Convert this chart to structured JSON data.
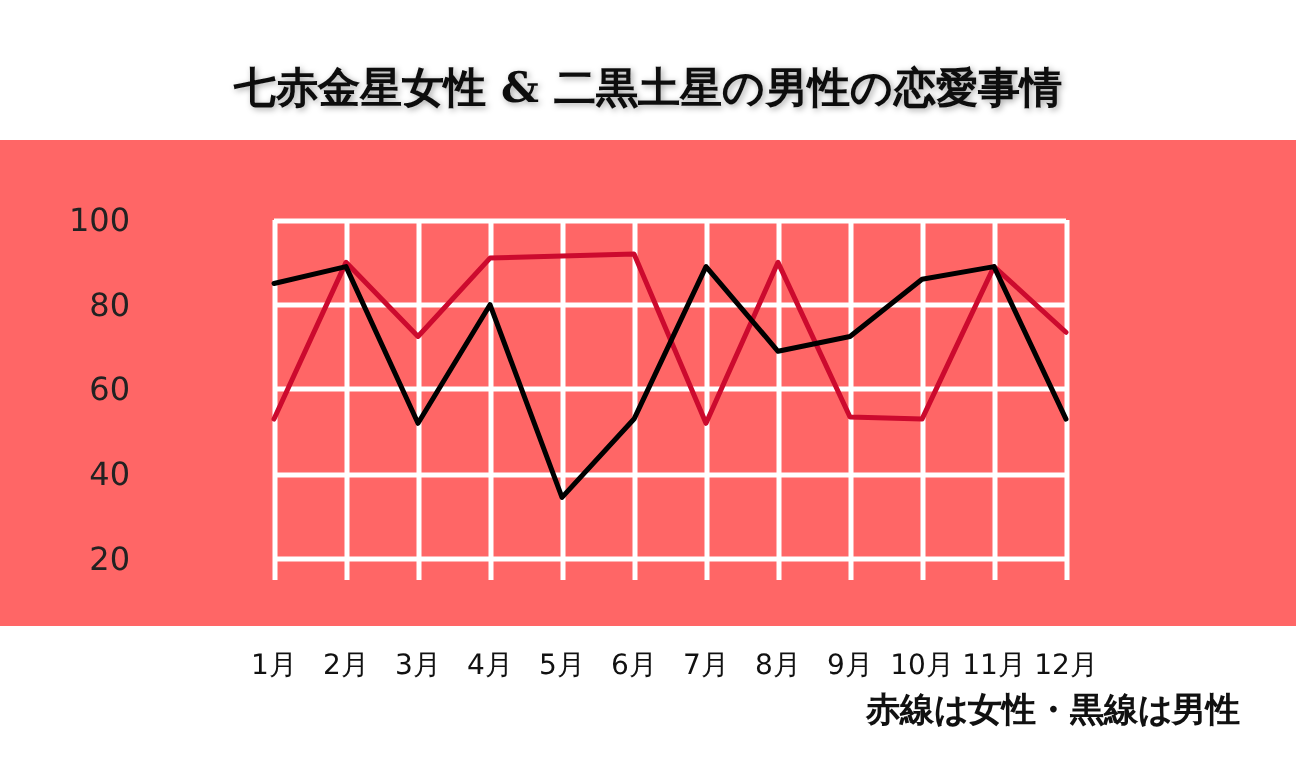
{
  "chart_data": {
    "type": "line",
    "title": "七赤金星女性 & 二黒土星の男性の恋愛事情",
    "categories": [
      "1月",
      "2月",
      "3月",
      "4月",
      "5月",
      "6月",
      "7月",
      "8月",
      "9月",
      "10月",
      "11月",
      "12月"
    ],
    "series": [
      {
        "color": "#cc0a2e",
        "values": [
          53,
          90,
          72.5,
          91,
          91.5,
          92,
          52,
          90,
          53.5,
          53,
          89,
          73.5
        ]
      },
      {
        "color": "#000000",
        "values": [
          85,
          89,
          52,
          80,
          34.5,
          53,
          89,
          69,
          72.5,
          86,
          89,
          53
        ]
      }
    ],
    "ylim": [
      15,
      100
    ],
    "yticks": [
      20,
      40,
      60,
      80,
      100
    ],
    "grid": true,
    "marker": "none",
    "line_style": "solid",
    "annotations": [
      "赤線は女性・黒線は男性"
    ]
  }
}
